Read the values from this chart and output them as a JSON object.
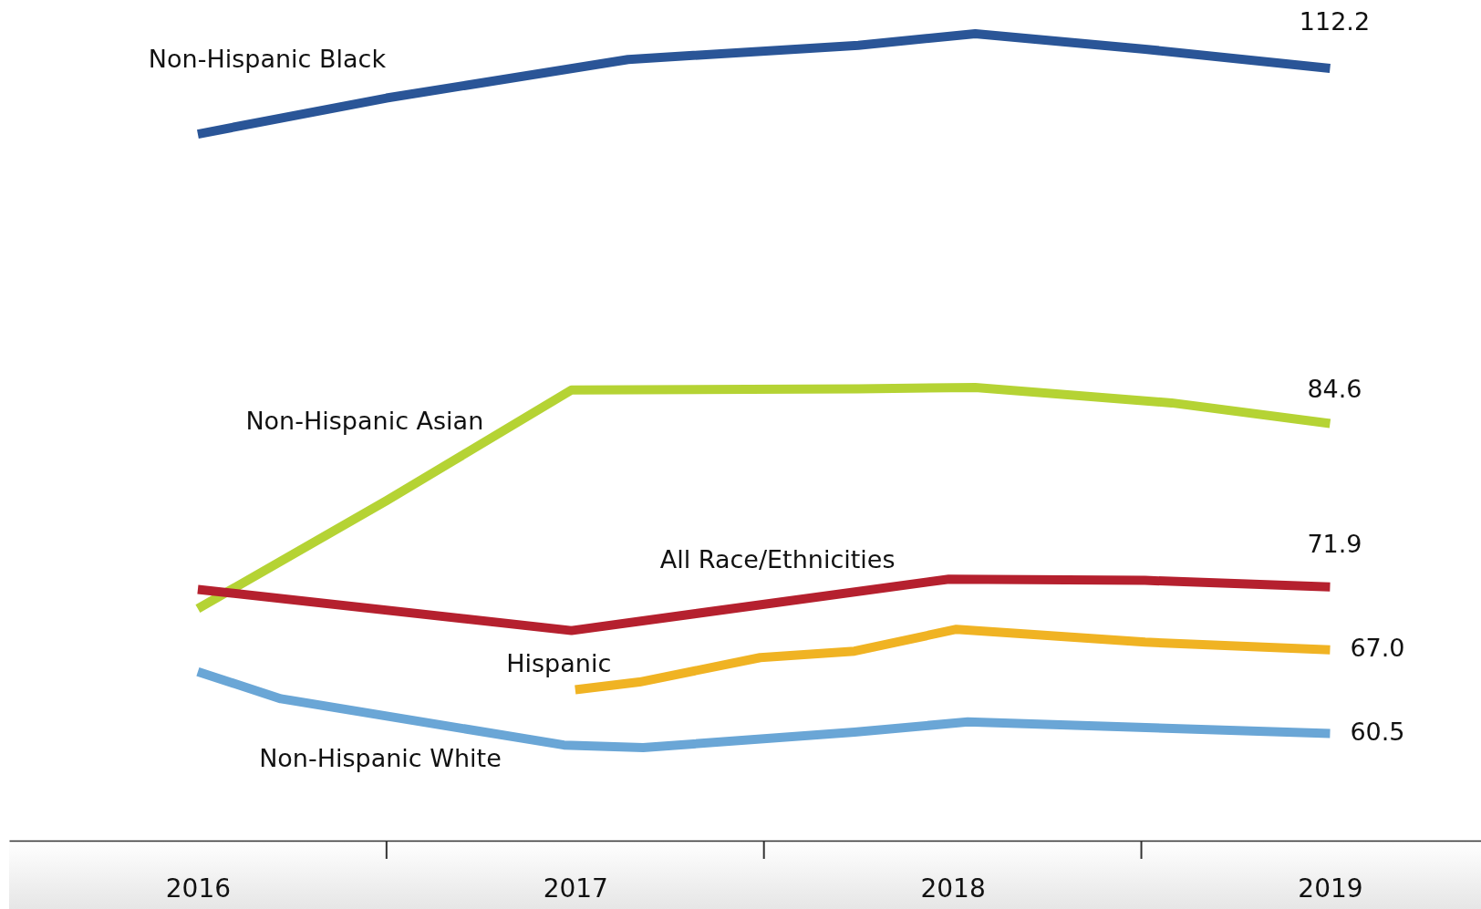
{
  "chart_data": {
    "type": "line",
    "xlim": [
      2015.5,
      2019.4
    ],
    "xticks": [
      2016,
      2017,
      2018,
      2019
    ],
    "tick_labels": "x",
    "marker": "none",
    "line_style": "solid",
    "series": [
      {
        "name": "Non-Hispanic Black",
        "color": "#2a5597",
        "x": [
          2016,
          2016.5,
          2017.14,
          2017.75,
          2018.06,
          2018.51,
          2019
        ],
        "values": [
          107.1,
          109.9,
          112.9,
          114.0,
          114.9,
          113.7,
          112.2
        ],
        "value_labels": [
          null,
          null,
          null,
          null,
          null,
          null,
          "112.2"
        ]
      },
      {
        "name": "Non-Hispanic Asian",
        "color": "#b5d334",
        "x": [
          2016,
          2016.5,
          2016.99,
          2017.75,
          2018.06,
          2018.58,
          2019
        ],
        "values": [
          70.2,
          78.6,
          87.2,
          87.3,
          87.4,
          86.2,
          84.6
        ],
        "value_labels": [
          null,
          null,
          null,
          null,
          null,
          null,
          "84.6"
        ]
      },
      {
        "name": "All Race/Ethnicities",
        "color": "#b5202e",
        "x": [
          2016,
          2016.99,
          2017.99,
          2018.51,
          2019
        ],
        "values": [
          71.7,
          68.5,
          72.5,
          72.4,
          71.9
        ],
        "value_labels": [
          null,
          null,
          null,
          null,
          "71.9"
        ]
      },
      {
        "name": "Hispanic",
        "color": "#f0b323",
        "x": [
          2017,
          2017.17,
          2017.49,
          2017.74,
          2018.01,
          2018.51,
          2019
        ],
        "values": [
          63.9,
          64.5,
          66.4,
          66.9,
          68.6,
          67.6,
          67.0
        ],
        "value_labels": [
          null,
          null,
          null,
          null,
          null,
          null,
          "67.0"
        ]
      },
      {
        "name": "Non-Hispanic White",
        "color": "#6aa6d6",
        "x": [
          2016,
          2016.22,
          2016.97,
          2017.18,
          2017.74,
          2018.04,
          2019
        ],
        "values": [
          65.3,
          63.2,
          59.6,
          59.4,
          60.6,
          61.4,
          60.5
        ],
        "value_labels": [
          null,
          null,
          null,
          null,
          null,
          null,
          "60.5"
        ]
      }
    ]
  }
}
